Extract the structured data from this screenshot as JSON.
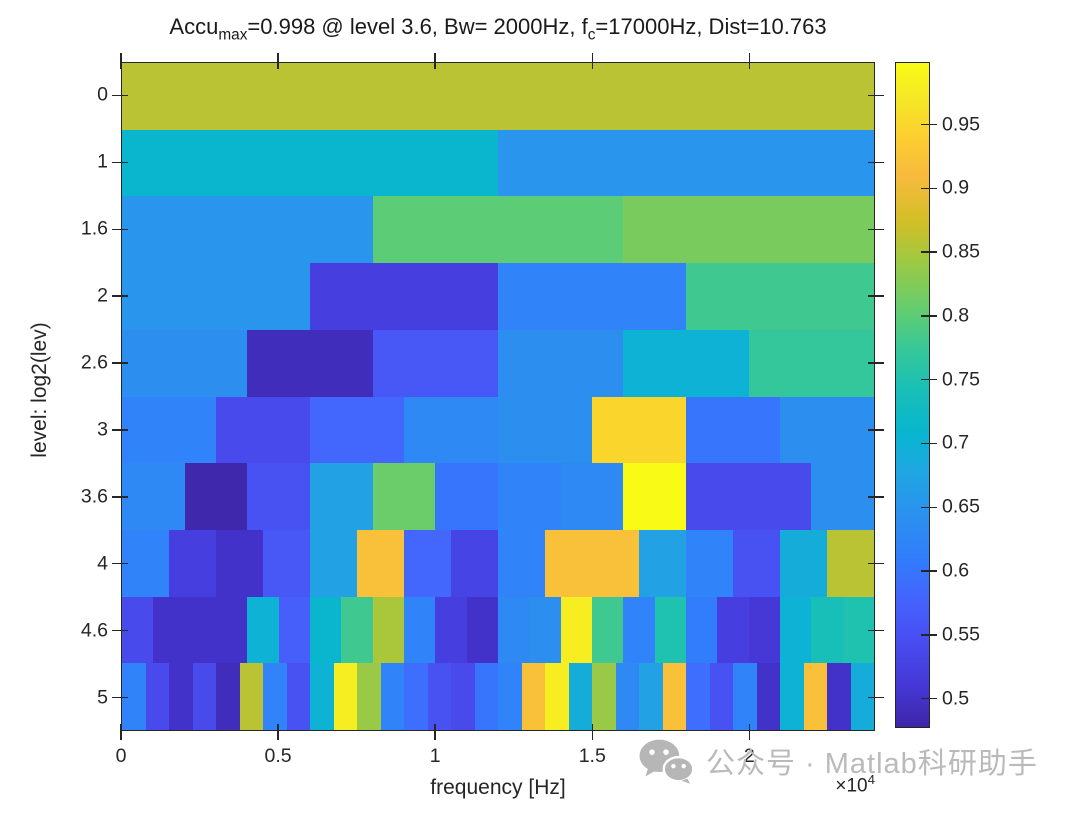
{
  "figure": {
    "title": {
      "p1": "Accu",
      "sub1": "max",
      "p2": "=0.998 @ level 3.6, Bw= 2000Hz, f",
      "sub2": "c",
      "p3": "=17000Hz, Dist=10.763"
    }
  },
  "watermark": {
    "icon": "wechat-icon",
    "text": "公众号 · Matlab科研助手",
    "color": "#bababa"
  },
  "chart_data": {
    "type": "heatmap",
    "title": "Accu_max=0.998 @ level 3.6, Bw= 2000Hz, f_c=17000Hz, Dist=10.763",
    "xlabel": "frequency [Hz]",
    "ylabel": "level: log2(lev)",
    "x_exp_base": "×10",
    "x_exp_power": "4",
    "x_axis": {
      "min_hz": 0,
      "max_hz": 24000,
      "tick_values_hz": [
        0,
        5000,
        10000,
        15000,
        20000
      ],
      "tick_labels": [
        "0",
        "0.5",
        "1",
        "1.5",
        "2"
      ]
    },
    "y_axis": {
      "tick_labels": [
        "0",
        "1",
        "1.6",
        "2",
        "2.6",
        "3",
        "3.6",
        "4",
        "4.6",
        "5"
      ]
    },
    "color_axis": {
      "min": 0.477,
      "max": 0.999,
      "tick_values": [
        0.5,
        0.55,
        0.6,
        0.65,
        0.7,
        0.75,
        0.8,
        0.85,
        0.9,
        0.95
      ],
      "tick_labels": [
        "0.5",
        "0.55",
        "0.6",
        "0.65",
        "0.7",
        "0.75",
        "0.8",
        "0.85",
        "0.9",
        "0.95"
      ]
    },
    "colormap": "parula",
    "colormap_stops": [
      [
        0.0,
        "#3e26a8"
      ],
      [
        0.06,
        "#4537d5"
      ],
      [
        0.13,
        "#484df0"
      ],
      [
        0.19,
        "#4563fd"
      ],
      [
        0.25,
        "#327cfc"
      ],
      [
        0.32,
        "#2b91ef"
      ],
      [
        0.38,
        "#20a5e3"
      ],
      [
        0.44,
        "#08b5d0"
      ],
      [
        0.51,
        "#19bfb6"
      ],
      [
        0.57,
        "#37c897"
      ],
      [
        0.63,
        "#64cd6f"
      ],
      [
        0.7,
        "#9dc943"
      ],
      [
        0.76,
        "#d1bf27"
      ],
      [
        0.83,
        "#f8ba3d"
      ],
      [
        0.89,
        "#fccf30"
      ],
      [
        0.95,
        "#f5e924"
      ],
      [
        1.0,
        "#f9fb15"
      ]
    ],
    "rows": [
      {
        "level_label": "0",
        "n_bands": 1,
        "values": [
          0.86
        ]
      },
      {
        "level_label": "1",
        "n_bands": 2,
        "values": [
          0.71,
          0.65
        ]
      },
      {
        "level_label": "1.6",
        "n_bands": 3,
        "values": [
          0.65,
          0.8,
          0.82
        ]
      },
      {
        "level_label": "2",
        "n_bands": 4,
        "values": [
          0.65,
          0.52,
          0.62,
          0.78
        ]
      },
      {
        "level_label": "2.6",
        "n_bands": 6,
        "values": [
          0.64,
          0.49,
          0.56,
          0.64,
          0.7,
          0.77
        ]
      },
      {
        "level_label": "3",
        "n_bands": 8,
        "values": [
          0.62,
          0.54,
          0.58,
          0.63,
          0.64,
          0.95,
          0.6,
          0.64
        ]
      },
      {
        "level_label": "3.6",
        "n_bands": 12,
        "values": [
          0.63,
          0.48,
          0.55,
          0.67,
          0.81,
          0.6,
          0.62,
          0.63,
          0.998,
          0.54,
          0.54,
          0.64
        ]
      },
      {
        "level_label": "4",
        "n_bands": 16,
        "values": [
          0.62,
          0.52,
          0.5,
          0.56,
          0.67,
          0.92,
          0.58,
          0.53,
          0.62,
          0.92,
          0.92,
          0.67,
          0.62,
          0.55,
          0.69,
          0.86
        ]
      },
      {
        "level_label": "4.6",
        "n_bands": 24,
        "values": [
          0.54,
          0.5,
          0.5,
          0.5,
          0.7,
          0.57,
          0.71,
          0.78,
          0.85,
          0.62,
          0.52,
          0.5,
          0.63,
          0.64,
          0.98,
          0.78,
          0.62,
          0.75,
          0.61,
          0.52,
          0.51,
          0.7,
          0.74,
          0.75
        ]
      },
      {
        "level_label": "5",
        "n_bands": 32,
        "values": [
          0.62,
          0.54,
          0.5,
          0.54,
          0.49,
          0.86,
          0.62,
          0.55,
          0.7,
          0.98,
          0.84,
          0.62,
          0.59,
          0.55,
          0.54,
          0.6,
          0.62,
          0.92,
          0.98,
          0.69,
          0.84,
          0.63,
          0.67,
          0.92,
          0.59,
          0.55,
          0.62,
          0.5,
          0.7,
          0.92,
          0.5,
          0.69
        ]
      }
    ],
    "max_annotation": {
      "accu_max": 0.998,
      "level": 3.6,
      "bw_hz": 2000,
      "fc_hz": 17000,
      "dist": 10.763
    }
  }
}
